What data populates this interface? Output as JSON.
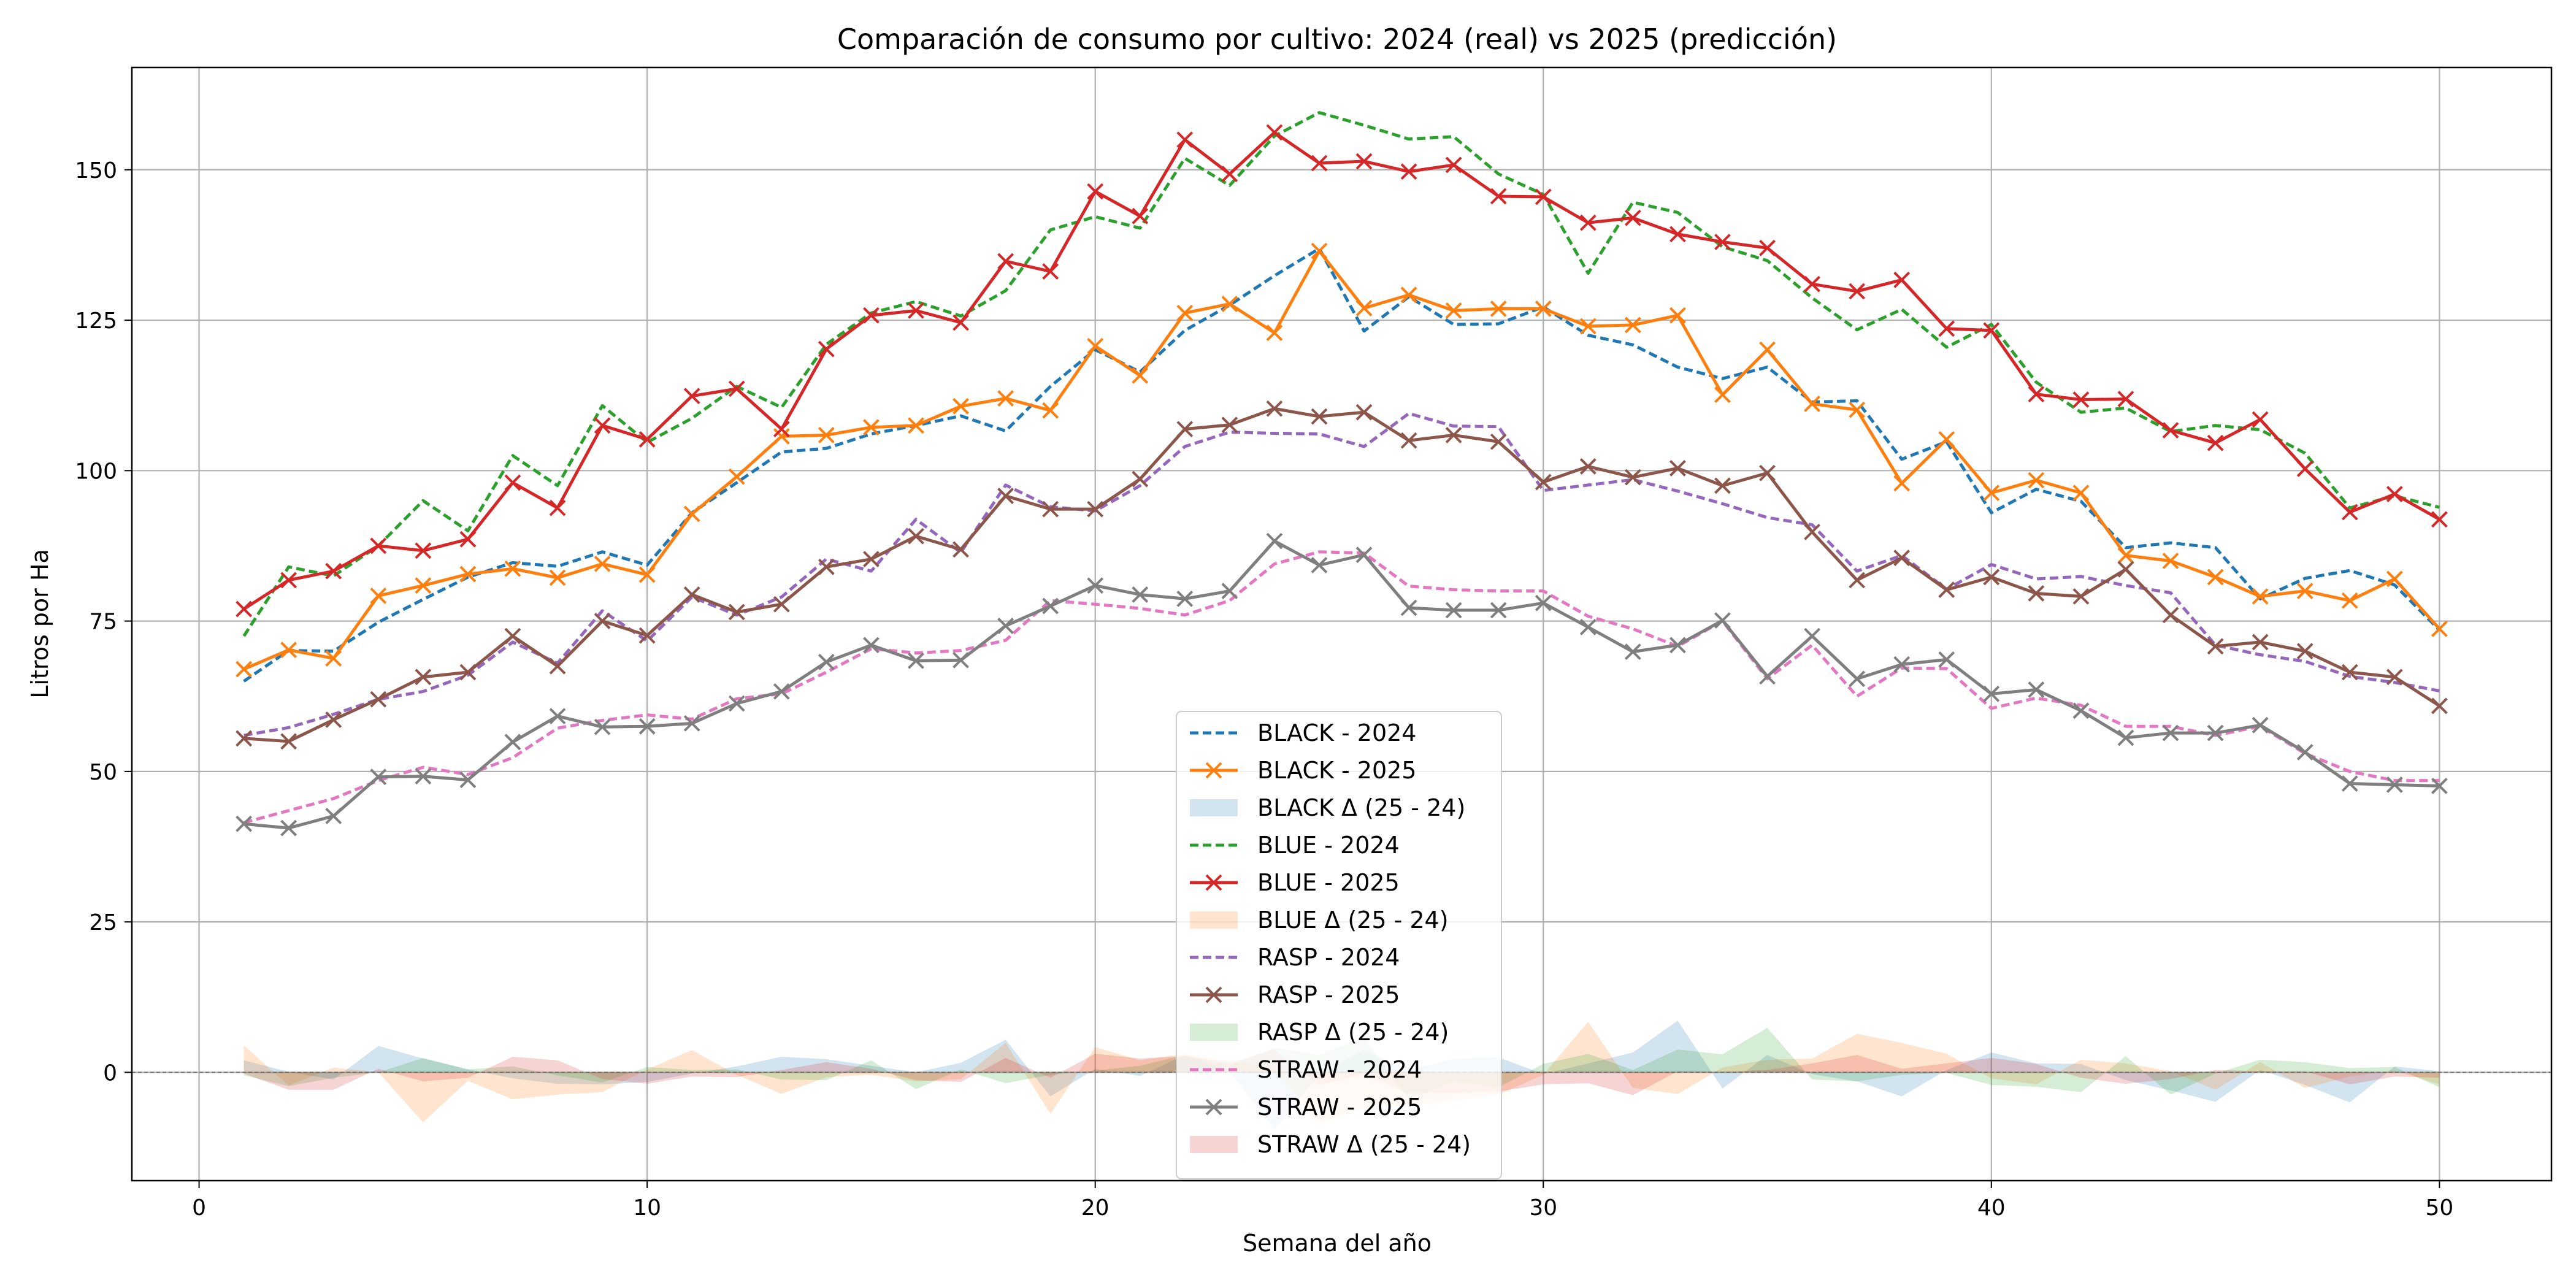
{
  "chart_data": {
    "type": "line",
    "title": "Comparación de consumo por cultivo: 2024 (real) vs 2025 (predicción)",
    "xlabel": "Semana del año",
    "ylabel": "Litros por Ha",
    "xlim": [
      -1.5,
      52.5
    ],
    "ylim": [
      -18,
      167
    ],
    "xticks": [
      0,
      10,
      20,
      30,
      40,
      50
    ],
    "yticks": [
      0,
      25,
      50,
      75,
      100,
      125,
      150
    ],
    "grid": true,
    "legend_position": "lower-center",
    "x": [
      1,
      2,
      3,
      4,
      5,
      6,
      7,
      8,
      9,
      10,
      11,
      12,
      13,
      14,
      15,
      16,
      17,
      18,
      19,
      20,
      21,
      22,
      23,
      24,
      25,
      26,
      27,
      28,
      29,
      30,
      31,
      32,
      33,
      34,
      35,
      36,
      37,
      38,
      39,
      40,
      41,
      42,
      43,
      44,
      45,
      46,
      47,
      48,
      49,
      50
    ],
    "series": [
      {
        "name": "BLACK - 2024",
        "crop": "BLACK",
        "year": 2024,
        "color": "#1f77b4",
        "values": [
          65.0,
          70.1,
          70.0,
          74.8,
          78.6,
          82.3,
          84.7,
          84.1,
          86.5,
          84.3,
          93.0,
          98.0,
          103.1,
          103.7,
          106.1,
          107.5,
          109.1,
          106.6,
          114.0,
          120.1,
          116.4,
          123.3,
          127.5,
          132.4,
          136.9,
          123.2,
          128.9,
          124.3,
          124.4,
          127.2,
          122.5,
          120.9,
          117.2,
          115.3,
          117.2,
          111.4,
          111.6,
          101.9,
          104.8,
          93.0,
          96.9,
          94.9,
          87.2,
          88.0,
          87.2,
          78.7,
          82.1,
          83.4,
          81.0,
          73.5
        ]
      },
      {
        "name": "BLACK - 2025",
        "crop": "BLACK",
        "year": 2025,
        "color": "#ff7f0e",
        "values": [
          67.0,
          70.2,
          68.8,
          79.2,
          80.9,
          82.8,
          83.7,
          82.2,
          84.5,
          82.7,
          92.8,
          99.0,
          105.7,
          105.9,
          107.2,
          107.5,
          110.7,
          112.0,
          110.0,
          120.7,
          115.8,
          126.2,
          127.7,
          122.9,
          136.5,
          127.0,
          129.2,
          126.6,
          126.9,
          126.9,
          124.0,
          124.2,
          125.8,
          112.6,
          120.1,
          111.1,
          110.1,
          97.9,
          105.2,
          96.3,
          98.4,
          96.3,
          85.9,
          85.0,
          82.3,
          79.1,
          80.0,
          78.4,
          82.0,
          73.7
        ]
      },
      {
        "name": "BLUE - 2024",
        "crop": "BLUE",
        "year": 2024,
        "color": "#2ca02c",
        "values": [
          72.5,
          84.0,
          82.5,
          87.5,
          95.0,
          90.0,
          102.5,
          97.5,
          110.8,
          104.7,
          108.7,
          114.0,
          110.5,
          121.0,
          126.2,
          128.1,
          125.7,
          129.9,
          140.0,
          142.2,
          140.3,
          151.9,
          147.4,
          155.6,
          159.5,
          157.4,
          155.1,
          155.5,
          149.3,
          145.9,
          132.8,
          144.6,
          142.9,
          137.2,
          134.9,
          128.7,
          123.4,
          126.8,
          120.5,
          124.3,
          114.7,
          109.7,
          110.4,
          106.5,
          107.5,
          106.8,
          102.9,
          93.8,
          95.8,
          93.9
        ]
      },
      {
        "name": "BLUE - 2025",
        "crop": "BLUE",
        "year": 2025,
        "color": "#d62728",
        "values": [
          77.0,
          81.8,
          83.3,
          87.5,
          86.7,
          88.6,
          98.0,
          93.8,
          107.5,
          105.2,
          112.4,
          113.6,
          106.9,
          120.2,
          125.8,
          126.6,
          124.6,
          134.8,
          133.1,
          146.4,
          142.3,
          155.0,
          149.3,
          156.2,
          151.1,
          151.4,
          149.7,
          150.8,
          145.6,
          145.5,
          141.2,
          142.0,
          139.3,
          138.0,
          137.0,
          131.0,
          129.8,
          131.7,
          123.6,
          123.3,
          112.7,
          111.8,
          111.9,
          106.7,
          104.6,
          108.5,
          100.3,
          93.1,
          96.1,
          91.9
        ]
      },
      {
        "name": "RASP - 2024",
        "crop": "RASP",
        "year": 2024,
        "color": "#9467bd",
        "values": [
          56.0,
          57.3,
          59.5,
          62.0,
          63.3,
          66.0,
          71.5,
          68.0,
          76.7,
          71.7,
          79.0,
          76.0,
          79.0,
          85.3,
          83.3,
          91.9,
          86.4,
          97.6,
          94.0,
          93.3,
          97.5,
          104.0,
          106.4,
          106.2,
          106.1,
          104.0,
          109.5,
          107.4,
          107.3,
          96.7,
          97.6,
          98.5,
          96.6,
          94.5,
          92.2,
          91.0,
          83.3,
          85.9,
          80.3,
          84.4,
          82.0,
          82.4,
          80.9,
          79.7,
          71.0,
          69.4,
          68.3,
          65.8,
          64.8,
          63.4
        ]
      },
      {
        "name": "RASP - 2025",
        "crop": "RASP",
        "year": 2025,
        "color": "#8c564b",
        "values": [
          55.5,
          55.0,
          58.6,
          62.0,
          65.7,
          66.5,
          72.5,
          67.5,
          75.0,
          72.6,
          79.4,
          76.5,
          77.8,
          84.0,
          85.3,
          89.1,
          86.9,
          95.8,
          93.6,
          93.6,
          98.6,
          106.9,
          107.6,
          110.3,
          109.0,
          109.7,
          105.0,
          105.9,
          104.8,
          98.1,
          100.7,
          98.9,
          100.4,
          97.5,
          99.6,
          89.8,
          81.8,
          85.5,
          80.2,
          82.3,
          79.6,
          79.1,
          83.6,
          76.0,
          70.8,
          71.5,
          70.0,
          66.5,
          65.7,
          60.9
        ]
      },
      {
        "name": "STRAW - 2024",
        "crop": "STRAW",
        "year": 2024,
        "color": "#e377c2",
        "values": [
          41.5,
          43.5,
          45.5,
          48.5,
          50.7,
          49.5,
          52.3,
          57.2,
          58.5,
          59.4,
          58.7,
          62.1,
          62.9,
          66.5,
          70.4,
          69.7,
          70.1,
          71.8,
          78.4,
          77.8,
          77.1,
          76.0,
          78.4,
          84.5,
          86.5,
          86.3,
          80.8,
          80.2,
          80.0,
          80.0,
          75.8,
          73.7,
          70.8,
          75.0,
          65.4,
          71.0,
          62.5,
          67.2,
          67.1,
          60.5,
          62.2,
          61.0,
          57.5,
          57.5,
          56.0,
          57.5,
          53.0,
          50.0,
          48.5,
          48.5
        ]
      },
      {
        "name": "STRAW - 2025",
        "crop": "STRAW",
        "year": 2025,
        "color": "#7f7f7f",
        "values": [
          41.3,
          40.6,
          42.6,
          49.1,
          49.2,
          48.6,
          54.9,
          59.2,
          57.4,
          57.5,
          58.0,
          61.3,
          63.3,
          68.2,
          71.0,
          68.4,
          68.5,
          74.2,
          77.5,
          80.9,
          79.4,
          78.7,
          80.0,
          88.3,
          84.3,
          86.0,
          77.2,
          76.8,
          76.8,
          78.0,
          74.0,
          69.9,
          71.0,
          75.1,
          65.8,
          72.5,
          65.4,
          67.8,
          68.6,
          62.9,
          63.6,
          60.1,
          55.6,
          56.4,
          56.4,
          57.7,
          53.2,
          48.0,
          47.8,
          47.6
        ]
      }
    ],
    "delta_areas": [
      {
        "name": "BLACK Δ (25 - 24)",
        "crop": "BLACK",
        "color": "#1f77b4",
        "opacity": 0.2,
        "values": [
          2.0,
          0.1,
          -1.2,
          4.4,
          2.3,
          0.5,
          -1.0,
          -1.9,
          -2.0,
          -1.6,
          -0.2,
          1.0,
          2.6,
          2.2,
          1.1,
          0.0,
          1.6,
          5.4,
          -4.0,
          0.6,
          -0.6,
          2.9,
          0.2,
          -9.5,
          -0.4,
          3.8,
          0.3,
          2.3,
          2.5,
          -0.3,
          1.5,
          3.3,
          8.6,
          -2.7,
          2.9,
          -0.3,
          -1.5,
          -4.0,
          0.4,
          3.3,
          1.5,
          1.4,
          -1.3,
          -3.0,
          -4.9,
          0.4,
          -2.1,
          -5.0,
          1.0,
          0.2
        ]
      },
      {
        "name": "BLUE Δ (25 - 24)",
        "crop": "BLUE",
        "color": "#ff7f0e",
        "opacity": 0.2,
        "values": [
          4.5,
          -2.2,
          0.8,
          0.0,
          -8.3,
          -1.4,
          -4.5,
          -3.7,
          -3.3,
          0.5,
          3.7,
          -0.4,
          -3.6,
          -0.8,
          -0.4,
          -1.5,
          -1.1,
          4.9,
          -6.9,
          4.2,
          2.0,
          3.1,
          1.9,
          0.6,
          -8.4,
          -6.0,
          -5.4,
          -4.7,
          -3.7,
          -0.4,
          8.4,
          -2.6,
          -3.6,
          0.8,
          2.1,
          2.3,
          6.4,
          4.9,
          3.1,
          -1.0,
          -2.0,
          2.1,
          1.5,
          0.2,
          -2.9,
          1.7,
          -2.6,
          -0.7,
          0.3,
          -2.0
        ]
      },
      {
        "name": "RASP Δ (25 - 24)",
        "crop": "RASP",
        "color": "#2ca02c",
        "opacity": 0.2,
        "values": [
          -0.5,
          -2.3,
          -0.9,
          0.0,
          2.4,
          0.5,
          1.0,
          -0.5,
          -1.7,
          0.9,
          0.4,
          0.5,
          -1.2,
          -1.3,
          2.0,
          -2.8,
          0.5,
          -1.8,
          -0.4,
          0.3,
          1.1,
          2.9,
          1.2,
          4.1,
          2.9,
          5.7,
          -4.5,
          -1.5,
          -2.5,
          1.4,
          3.1,
          0.4,
          3.8,
          3.0,
          7.4,
          -1.2,
          -1.5,
          -0.4,
          -0.1,
          -2.1,
          -2.4,
          -3.3,
          2.7,
          -3.7,
          -0.2,
          2.1,
          1.7,
          0.7,
          0.9,
          -2.5
        ]
      },
      {
        "name": "STRAW Δ (25 - 24)",
        "crop": "STRAW",
        "color": "#d62728",
        "opacity": 0.2,
        "values": [
          -0.2,
          -2.9,
          -2.9,
          0.6,
          -1.5,
          -0.9,
          2.6,
          2.0,
          -1.1,
          -1.9,
          -0.7,
          -0.8,
          0.4,
          1.7,
          0.6,
          -1.3,
          -1.6,
          2.4,
          -0.9,
          3.1,
          2.3,
          2.7,
          1.6,
          3.8,
          -2.2,
          -0.3,
          -3.6,
          -3.4,
          -3.2,
          -2.0,
          -1.8,
          -3.8,
          0.2,
          0.1,
          0.4,
          1.5,
          2.9,
          0.6,
          1.5,
          2.4,
          1.4,
          -0.9,
          -1.9,
          -1.1,
          0.4,
          0.2,
          0.2,
          -2.0,
          -0.7,
          -0.9
        ]
      }
    ],
    "legend_entries": [
      {
        "label": "BLACK - 2024",
        "kind": "line",
        "color": "#1f77b4",
        "dashed": true,
        "marker": false
      },
      {
        "label": "BLACK - 2025",
        "kind": "line",
        "color": "#ff7f0e",
        "dashed": false,
        "marker": true
      },
      {
        "label": "BLACK Δ (25 - 24)",
        "kind": "area",
        "color": "#1f77b4"
      },
      {
        "label": "BLUE - 2024",
        "kind": "line",
        "color": "#2ca02c",
        "dashed": true,
        "marker": false
      },
      {
        "label": "BLUE - 2025",
        "kind": "line",
        "color": "#d62728",
        "dashed": false,
        "marker": true
      },
      {
        "label": "BLUE Δ (25 - 24)",
        "kind": "area",
        "color": "#ff7f0e"
      },
      {
        "label": "RASP - 2024",
        "kind": "line",
        "color": "#9467bd",
        "dashed": true,
        "marker": false
      },
      {
        "label": "RASP - 2025",
        "kind": "line",
        "color": "#8c564b",
        "dashed": false,
        "marker": true
      },
      {
        "label": "RASP Δ (25 - 24)",
        "kind": "area",
        "color": "#2ca02c"
      },
      {
        "label": "STRAW - 2024",
        "kind": "line",
        "color": "#e377c2",
        "dashed": true,
        "marker": false
      },
      {
        "label": "STRAW - 2025",
        "kind": "line",
        "color": "#7f7f7f",
        "dashed": false,
        "marker": true
      },
      {
        "label": "STRAW Δ (25 - 24)",
        "kind": "area",
        "color": "#d62728"
      }
    ]
  }
}
